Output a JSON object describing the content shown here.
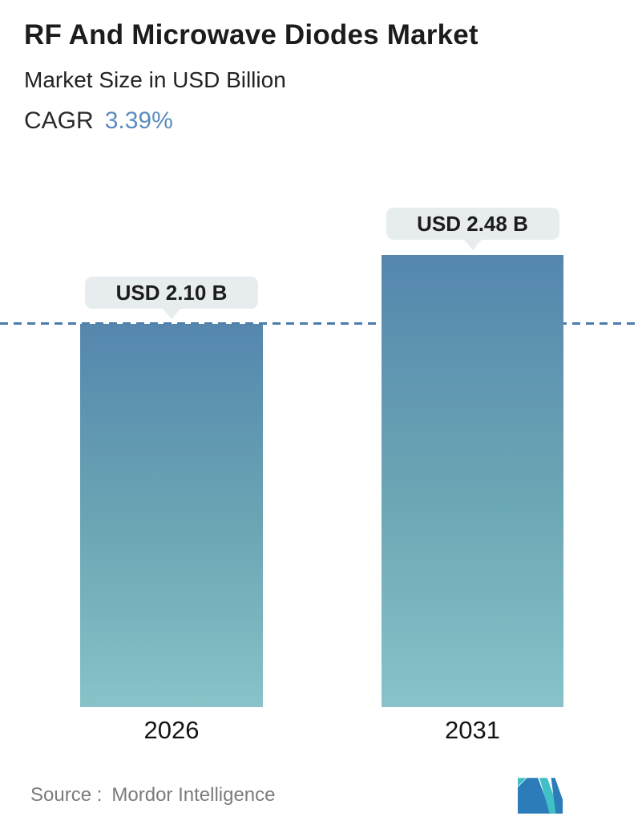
{
  "chart_data": {
    "type": "bar",
    "title": "RF And Microwave Diodes Market",
    "subtitle": "Market Size in USD Billion",
    "cagr_label": "CAGR",
    "cagr_value": "3.39%",
    "categories": [
      "2026",
      "2031"
    ],
    "values": [
      2.1,
      2.48
    ],
    "value_labels": [
      "USD 2.10 B",
      "USD 2.48 B"
    ],
    "unit": "USD Billion",
    "ylim": [
      0,
      2.6
    ],
    "grid": false,
    "legend": "none",
    "reference_line": {
      "y": 2.1,
      "style": "dashed",
      "color": "#4c7cab"
    }
  },
  "footer": {
    "source_label": "Source :",
    "source_name": "Mordor Intelligence",
    "logo_icon": "mordor-intelligence-logo"
  },
  "colors": {
    "accent_blue": "#5b8cbe",
    "bar_gradient_top": "#5587ae",
    "bar_gradient_bottom": "#87c3c9",
    "tooltip_bg": "#e7ecee",
    "dashed_line": "#4c7cab",
    "source_text": "#7b7b7b",
    "logo_blue": "#2b7cb9",
    "logo_teal": "#3fc0c4"
  }
}
